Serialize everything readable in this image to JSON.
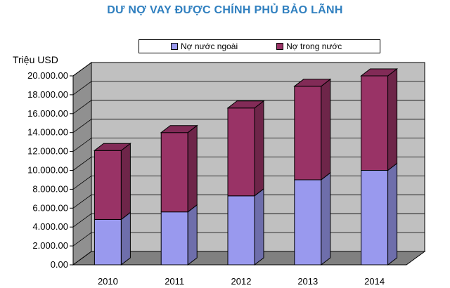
{
  "title": "DƯ NỢ VAY ĐƯỢC CHÍNH PHỦ BẢO LÃNH",
  "y_unit": "Triệu USD",
  "legend": [
    {
      "label": "Nợ nước ngoài",
      "color": "#9999ee"
    },
    {
      "label": "Nợ trong nước",
      "color": "#993366"
    }
  ],
  "colors": {
    "foreign": "#9999ee",
    "domestic": "#993366",
    "wall": "#c0c0c0",
    "floor": "#808080"
  },
  "chart_data": {
    "type": "bar",
    "stacked": true,
    "three_d": true,
    "categories": [
      "2010",
      "2011",
      "2012",
      "2013",
      "2014"
    ],
    "series": [
      {
        "name": "Nợ nước ngoài",
        "values": [
          4800,
          5600,
          7300,
          9000,
          10000
        ]
      },
      {
        "name": "Nợ trong nước",
        "values": [
          7300,
          8400,
          9300,
          9900,
          10000
        ]
      }
    ],
    "ylabel": "Triệu USD",
    "ylim": [
      0,
      20000
    ],
    "y_ticks": [
      "0.00",
      "2.000.00",
      "4.000.00",
      "6.000.00",
      "8.000.00",
      "10.000.00",
      "12.000.00",
      "14.000.00",
      "16.000.00",
      "18.000.00",
      "20.000.00"
    ],
    "grid": true,
    "legend_position": "top"
  }
}
